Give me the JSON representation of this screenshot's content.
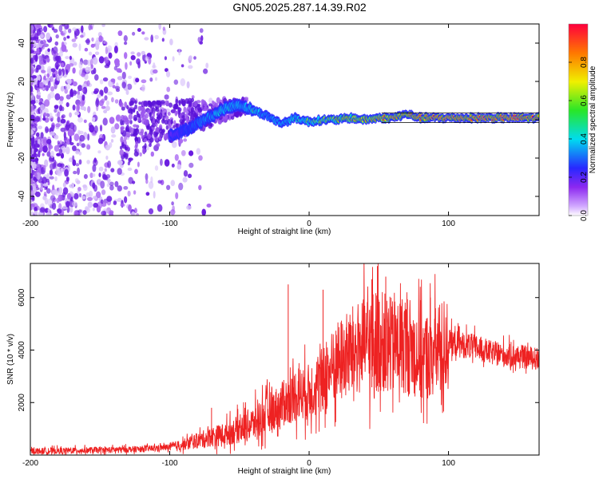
{
  "figure_title": "GN05.2025.287.14.39.R02",
  "chart_data": [
    {
      "type": "heatmap",
      "title": "",
      "xlabel": "Height of straight line (km)",
      "ylabel": "Frequency (Hz)",
      "xlim": [
        -200,
        165
      ],
      "ylim": [
        -50,
        50
      ],
      "x_ticks": [
        -200,
        -100,
        0,
        100
      ],
      "y_ticks": [
        -40,
        -20,
        0,
        20,
        40
      ],
      "colorbar": {
        "label": "Normalized spectral amplitude",
        "range": [
          0,
          1
        ],
        "ticks": [
          0.0,
          0.2,
          0.4,
          0.6,
          0.8
        ],
        "tick_labels": [
          "0.0",
          "0.2",
          "0.4",
          "0.6",
          "0.8"
        ],
        "colormap": "rainbow"
      },
      "ridge_trace": {
        "description_points_x": [
          -100,
          -90,
          -80,
          -70,
          -60,
          -50,
          -40,
          -30,
          -20,
          -10,
          0,
          10,
          20,
          30,
          40,
          50,
          60,
          70,
          80,
          90,
          100,
          110,
          120,
          130,
          140,
          150,
          165
        ],
        "frequency_hz": [
          -8,
          -6,
          -2,
          2,
          6,
          8,
          5,
          2,
          -2,
          1,
          -1,
          0,
          0,
          1,
          0,
          1,
          1,
          3,
          1,
          1,
          1,
          1,
          1,
          1,
          1,
          1,
          1
        ],
        "amplitude": [
          0.25,
          0.35,
          0.4,
          0.5,
          0.55,
          0.5,
          0.55,
          0.45,
          0.5,
          0.55,
          0.6,
          0.65,
          0.7,
          0.7,
          0.75,
          0.8,
          0.85,
          0.8,
          0.85,
          0.9,
          0.9,
          0.9,
          0.9,
          0.9,
          0.9,
          0.9,
          0.85
        ]
      },
      "colors": {
        "noise": "#7a1fe6",
        "ridge_edge": "#2a4cff",
        "ridge_mid": "#22e0c0",
        "ridge_core": "#ff3030"
      }
    },
    {
      "type": "line",
      "title": "",
      "xlabel": "Height of straight line (km)",
      "ylabel": "SNR (10 * v/v)",
      "xlim": [
        -200,
        165
      ],
      "ylim": [
        0,
        7300
      ],
      "x_ticks": [
        -200,
        -100,
        0,
        100
      ],
      "y_ticks": [
        2000,
        4000,
        6000
      ],
      "series": [
        {
          "color": "#ee2222",
          "x": [
            -200,
            -180,
            -160,
            -140,
            -120,
            -100,
            -90,
            -80,
            -70,
            -60,
            -50,
            -40,
            -30,
            -20,
            -10,
            0,
            10,
            20,
            30,
            40,
            50,
            60,
            70,
            80,
            90,
            100,
            110,
            120,
            130,
            140,
            150,
            160,
            165
          ],
          "values": [
            150,
            160,
            180,
            200,
            230,
            300,
            400,
            550,
            700,
            800,
            1000,
            1200,
            1600,
            1900,
            2300,
            2400,
            2900,
            3500,
            3900,
            4200,
            4400,
            4100,
            4300,
            3700,
            3900,
            4300,
            4200,
            4100,
            3900,
            3800,
            3750,
            3700,
            3650
          ],
          "peaks": [
            {
              "x": -70,
              "value": 1800
            },
            {
              "x": -15,
              "value": 6500
            },
            {
              "x": 10,
              "value": 6300
            },
            {
              "x": 45,
              "value": 6700
            },
            {
              "x": 49,
              "value": 7200
            },
            {
              "x": 55,
              "value": 6800
            },
            {
              "x": 80,
              "value": 5900
            },
            {
              "x": 87,
              "value": 6000
            }
          ]
        }
      ]
    }
  ]
}
